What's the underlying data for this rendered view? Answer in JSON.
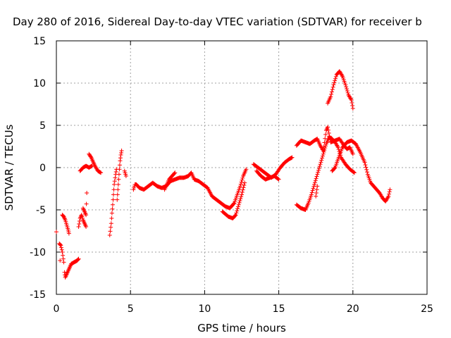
{
  "chart_data": {
    "type": "scatter",
    "title": "Day 280 of 2016, Sidereal Day-to-day VTEC variation (SDTVAR) for receiver b",
    "xlabel": "GPS time / hours",
    "ylabel": "SDTVAR / TECUs",
    "xlim": [
      0,
      25
    ],
    "ylim": [
      -15,
      15
    ],
    "xticks": [
      0,
      5,
      10,
      15,
      20,
      25
    ],
    "yticks": [
      -15,
      -10,
      -5,
      0,
      5,
      10,
      15
    ],
    "grid": true,
    "marker": "+",
    "color": "#ff0000",
    "segments": [
      [
        [
          0.0,
          -7.6
        ]
      ],
      [
        [
          0.2,
          -9.0
        ],
        [
          0.3,
          -9.2
        ],
        [
          0.4,
          -10.0
        ],
        [
          0.5,
          -11.2
        ]
      ],
      [
        [
          0.25,
          -11.0
        ]
      ],
      [
        [
          0.4,
          -5.6
        ],
        [
          0.5,
          -5.8
        ],
        [
          0.6,
          -6.2
        ],
        [
          0.7,
          -6.8
        ],
        [
          0.8,
          -7.4
        ],
        [
          0.85,
          -7.8
        ]
      ],
      [
        [
          0.55,
          -12.4
        ],
        [
          0.6,
          -13.0
        ],
        [
          0.7,
          -12.6
        ],
        [
          0.8,
          -12.2
        ],
        [
          0.9,
          -11.8
        ],
        [
          1.0,
          -11.4
        ],
        [
          1.2,
          -11.2
        ],
        [
          1.4,
          -11.0
        ],
        [
          1.5,
          -10.8
        ]
      ],
      [
        [
          1.5,
          -7.0
        ],
        [
          1.6,
          -6.0
        ],
        [
          1.7,
          -5.6
        ],
        [
          1.8,
          -6.2
        ],
        [
          1.9,
          -6.6
        ],
        [
          2.0,
          -7.0
        ]
      ],
      [
        [
          1.8,
          -4.8
        ],
        [
          1.9,
          -5.2
        ],
        [
          2.0,
          -5.6
        ],
        [
          2.05,
          -3.0
        ]
      ],
      [
        [
          1.6,
          -0.4
        ],
        [
          1.8,
          0.0
        ],
        [
          2.0,
          0.2
        ],
        [
          2.2,
          0.0
        ],
        [
          2.4,
          0.2
        ]
      ],
      [
        [
          2.2,
          1.6
        ],
        [
          2.35,
          1.2
        ],
        [
          2.5,
          0.6
        ],
        [
          2.6,
          0.2
        ],
        [
          2.8,
          -0.4
        ],
        [
          3.0,
          -0.6
        ]
      ],
      [
        [
          3.6,
          -8.0
        ],
        [
          3.7,
          -6.6
        ],
        [
          3.75,
          -5.4
        ],
        [
          3.8,
          -4.4
        ],
        [
          3.85,
          -3.2
        ],
        [
          3.9,
          -2.0
        ],
        [
          4.0,
          -0.8
        ],
        [
          4.05,
          -0.2
        ]
      ],
      [
        [
          4.1,
          -3.8
        ],
        [
          4.15,
          -2.6
        ],
        [
          4.2,
          -1.4
        ],
        [
          4.25,
          -0.2
        ],
        [
          4.3,
          0.8
        ],
        [
          4.35,
          1.5
        ],
        [
          4.4,
          2.0
        ]
      ],
      [
        [
          4.6,
          -0.4
        ],
        [
          4.7,
          -1.0
        ]
      ],
      [
        [
          5.2,
          -2.6
        ],
        [
          5.3,
          -2.0
        ],
        [
          5.4,
          -2.0
        ],
        [
          5.6,
          -2.4
        ],
        [
          5.9,
          -2.6
        ],
        [
          6.2,
          -2.2
        ],
        [
          6.5,
          -1.8
        ],
        [
          6.8,
          -2.2
        ],
        [
          7.1,
          -2.4
        ],
        [
          7.4,
          -2.2
        ],
        [
          7.7,
          -1.6
        ],
        [
          8.0,
          -1.4
        ],
        [
          8.3,
          -1.2
        ],
        [
          8.6,
          -1.2
        ],
        [
          8.9,
          -1.0
        ],
        [
          9.1,
          -0.6
        ],
        [
          9.3,
          -1.4
        ],
        [
          9.6,
          -1.6
        ],
        [
          9.9,
          -2.0
        ],
        [
          10.2,
          -2.4
        ],
        [
          10.5,
          -3.4
        ],
        [
          10.8,
          -3.8
        ],
        [
          11.1,
          -4.2
        ],
        [
          11.4,
          -4.6
        ],
        [
          11.7,
          -4.8
        ],
        [
          12.0,
          -4.2
        ],
        [
          12.2,
          -3.2
        ],
        [
          12.4,
          -2.2
        ],
        [
          12.6,
          -1.0
        ],
        [
          12.8,
          -0.2
        ]
      ],
      [
        [
          11.2,
          -5.2
        ],
        [
          11.6,
          -5.8
        ],
        [
          11.9,
          -6.0
        ],
        [
          12.1,
          -5.6
        ],
        [
          12.3,
          -4.4
        ],
        [
          12.5,
          -3.2
        ],
        [
          12.7,
          -1.8
        ]
      ],
      [
        [
          7.3,
          -2.6
        ],
        [
          7.6,
          -1.4
        ],
        [
          8.0,
          -0.6
        ]
      ],
      [
        [
          13.3,
          0.4
        ],
        [
          13.6,
          0.0
        ],
        [
          13.9,
          -0.4
        ],
        [
          14.2,
          -0.8
        ],
        [
          14.5,
          -1.2
        ],
        [
          14.8,
          -0.8
        ],
        [
          15.1,
          0.0
        ],
        [
          15.4,
          0.6
        ],
        [
          15.7,
          1.0
        ],
        [
          15.9,
          1.2
        ]
      ],
      [
        [
          13.5,
          -0.4
        ],
        [
          13.8,
          -1.0
        ],
        [
          14.1,
          -1.4
        ],
        [
          14.4,
          -1.2
        ],
        [
          14.7,
          -1.0
        ],
        [
          15.0,
          -1.4
        ]
      ],
      [
        [
          16.2,
          2.6
        ],
        [
          16.5,
          3.2
        ],
        [
          16.8,
          3.0
        ],
        [
          17.1,
          2.8
        ],
        [
          17.4,
          3.2
        ],
        [
          17.6,
          3.4
        ],
        [
          17.8,
          2.6
        ],
        [
          18.0,
          2.0
        ],
        [
          18.2,
          4.4
        ],
        [
          18.3,
          4.8
        ],
        [
          18.5,
          3.0
        ],
        [
          18.8,
          3.2
        ],
        [
          19.1,
          3.4
        ],
        [
          19.4,
          2.6
        ],
        [
          19.6,
          2.2
        ],
        [
          19.8,
          2.4
        ],
        [
          20.0,
          1.6
        ]
      ],
      [
        [
          16.2,
          -4.4
        ],
        [
          16.5,
          -4.8
        ],
        [
          16.8,
          -5.0
        ],
        [
          17.0,
          -4.2
        ],
        [
          17.2,
          -3.2
        ],
        [
          17.4,
          -2.0
        ],
        [
          17.6,
          -0.8
        ],
        [
          17.8,
          0.4
        ],
        [
          18.0,
          1.6
        ],
        [
          18.2,
          2.8
        ],
        [
          18.4,
          3.6
        ],
        [
          18.6,
          3.4
        ],
        [
          18.8,
          3.0
        ],
        [
          19.0,
          2.4
        ],
        [
          19.2,
          1.2
        ],
        [
          19.5,
          0.4
        ],
        [
          19.8,
          -0.2
        ],
        [
          20.1,
          -0.6
        ]
      ],
      [
        [
          17.5,
          -3.4
        ],
        [
          17.6,
          -2.2
        ]
      ],
      [
        [
          18.6,
          -0.4
        ],
        [
          18.8,
          0.0
        ],
        [
          19.0,
          1.0
        ],
        [
          19.3,
          2.4
        ],
        [
          19.6,
          3.0
        ],
        [
          19.9,
          3.2
        ],
        [
          20.2,
          2.8
        ],
        [
          20.5,
          1.8
        ],
        [
          20.8,
          0.6
        ],
        [
          21.0,
          -0.8
        ],
        [
          21.2,
          -1.8
        ],
        [
          21.5,
          -2.4
        ],
        [
          21.8,
          -3.0
        ],
        [
          22.0,
          -3.6
        ],
        [
          22.2,
          -4.0
        ],
        [
          22.4,
          -3.4
        ],
        [
          22.5,
          -2.6
        ]
      ],
      [
        [
          18.3,
          7.6
        ],
        [
          18.5,
          8.4
        ],
        [
          18.7,
          9.8
        ],
        [
          18.9,
          11.0
        ],
        [
          19.1,
          11.4
        ],
        [
          19.3,
          10.8
        ],
        [
          19.5,
          9.8
        ],
        [
          19.7,
          8.6
        ],
        [
          19.9,
          8.0
        ],
        [
          20.0,
          7.0
        ]
      ]
    ]
  },
  "colors": {
    "points": "#ff0000",
    "grid": "#a0a0a0",
    "axes": "#000000"
  }
}
